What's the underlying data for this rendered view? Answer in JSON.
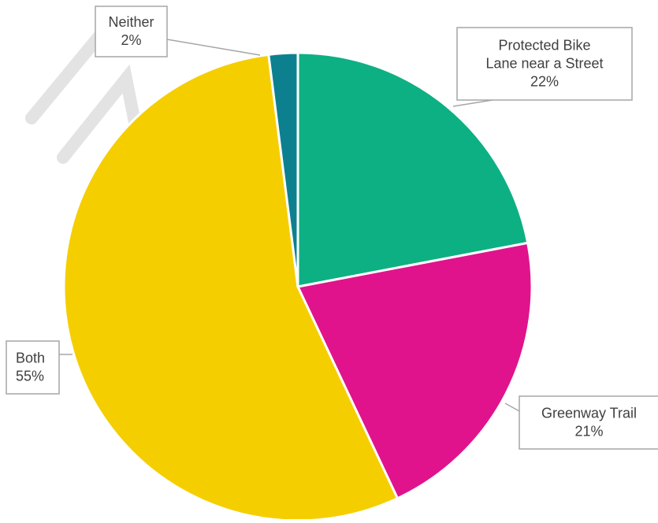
{
  "chart_data": {
    "type": "pie",
    "title": "",
    "start_angle_deg": 0,
    "direction": "clockwise",
    "slices": [
      {
        "label_lines": [
          "Protected Bike",
          "Lane near a Street"
        ],
        "value": 22,
        "display": "22%",
        "color": "#0DB083"
      },
      {
        "label_lines": [
          "Greenway Trail"
        ],
        "value": 21,
        "display": "21%",
        "color": "#E0138C"
      },
      {
        "label_lines": [
          "Both"
        ],
        "value": 55,
        "display": "55%",
        "color": "#F5CE00"
      },
      {
        "label_lines": [
          "Neither"
        ],
        "value": 2,
        "display": "2%",
        "color": "#0D8090"
      }
    ],
    "data_labels": "callouts",
    "legend": "none"
  }
}
